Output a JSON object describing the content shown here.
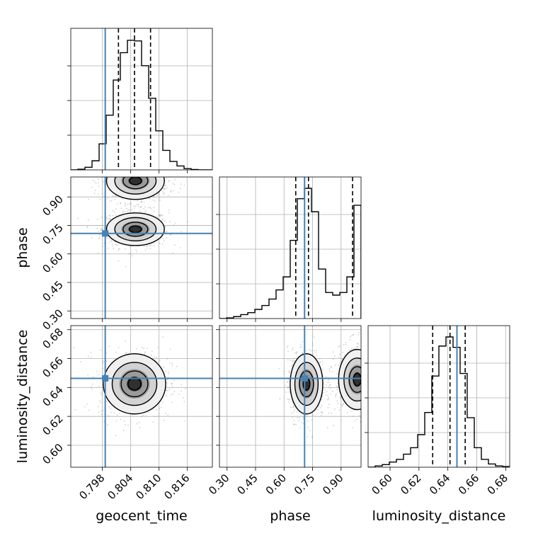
{
  "chart_data": {
    "type": "corner",
    "parameters": [
      "geocent_time",
      "phase",
      "luminosity_distance"
    ],
    "axis_labels": {
      "geocent_time": "geocent_time",
      "phase": "phase",
      "luminosity_distance": "luminosity_distance"
    },
    "ranges": {
      "geocent_time": [
        0.7913,
        0.8213
      ],
      "phase": [
        0.26,
        1.005
      ],
      "luminosity_distance": [
        0.5848,
        0.6828
      ]
    },
    "ticks": {
      "geocent_time": [
        0.798,
        0.804,
        0.81,
        0.816
      ],
      "phase": [
        0.3,
        0.45,
        0.6,
        0.75,
        0.9
      ],
      "luminosity_distance": [
        0.6,
        0.62,
        0.64,
        0.66,
        0.68
      ]
    },
    "tick_labels": {
      "geocent_time": [
        "0.798",
        "0.804",
        "0.810",
        "0.816"
      ],
      "phase": [
        "0.30",
        "0.45",
        "0.60",
        "0.75",
        "0.90"
      ],
      "luminosity_distance": [
        "0.60",
        "0.62",
        "0.64",
        "0.66",
        "0.68"
      ]
    },
    "truths": {
      "geocent_time": 0.7986,
      "phase": 0.708,
      "luminosity_distance": 0.6463
    },
    "quantiles": {
      "geocent_time": [
        0.8014,
        0.8048,
        0.8082
      ],
      "phase": [
        0.6615,
        0.7285,
        0.9605
      ],
      "luminosity_distance": [
        0.6295,
        0.6415,
        0.652
      ]
    },
    "histograms": {
      "geocent_time": {
        "bins": [
          0.7913,
          0.7928,
          0.7943,
          0.7958,
          0.7973,
          0.7988,
          0.8003,
          0.8018,
          0.8033,
          0.8048,
          0.8063,
          0.8078,
          0.8093,
          0.8108,
          0.8123,
          0.8138,
          0.8153,
          0.8168,
          0.8183,
          0.8198,
          0.8213
        ],
        "counts": [
          0.0,
          0.005,
          0.02,
          0.07,
          0.2,
          0.42,
          0.69,
          0.9,
          0.995,
          0.99,
          0.8,
          0.55,
          0.3,
          0.15,
          0.065,
          0.03,
          0.01,
          0.003,
          0.0,
          0.0
        ]
      },
      "phase": {
        "bins": [
          0.26,
          0.2973,
          0.3345,
          0.3718,
          0.409,
          0.4463,
          0.4835,
          0.5208,
          0.558,
          0.5953,
          0.6325,
          0.6698,
          0.707,
          0.7443,
          0.7815,
          0.8188,
          0.856,
          0.8933,
          0.9305,
          0.9678,
          1.005
        ],
        "counts": [
          0.0,
          0.005,
          0.015,
          0.03,
          0.045,
          0.07,
          0.1,
          0.15,
          0.22,
          0.32,
          0.6,
          0.92,
          1.0,
          0.82,
          0.38,
          0.2,
          0.18,
          0.2,
          0.32,
          0.87
        ]
      },
      "luminosity_distance": {
        "bins": [
          0.5848,
          0.5897,
          0.5946,
          0.5995,
          0.6044,
          0.6093,
          0.6142,
          0.6191,
          0.624,
          0.6289,
          0.6338,
          0.6387,
          0.6436,
          0.6485,
          0.6534,
          0.6583,
          0.6632,
          0.6681,
          0.673,
          0.6779,
          0.6828
        ],
        "counts": [
          0.0,
          0.01,
          0.02,
          0.04,
          0.06,
          0.1,
          0.15,
          0.25,
          0.42,
          0.7,
          0.93,
          1.0,
          0.92,
          0.72,
          0.38,
          0.15,
          0.06,
          0.025,
          0.01,
          0.005
        ]
      }
    },
    "density_modes": [
      {
        "x": "geocent_time",
        "y": "phase",
        "center": [
          0.805,
          0.73
        ],
        "spread": [
          0.0025,
          0.035
        ]
      },
      {
        "x": "geocent_time",
        "y": "phase",
        "center": [
          0.805,
          0.985
        ],
        "spread": [
          0.0025,
          0.04
        ]
      },
      {
        "x": "geocent_time",
        "y": "luminosity_distance",
        "center": [
          0.8048,
          0.6425
        ],
        "spread": [
          0.0027,
          0.0085
        ]
      },
      {
        "x": "phase",
        "y": "luminosity_distance",
        "center": [
          0.718,
          0.6425
        ],
        "spread": [
          0.035,
          0.0085
        ]
      },
      {
        "x": "phase",
        "y": "luminosity_distance",
        "center": [
          0.985,
          0.6455
        ],
        "spread": [
          0.04,
          0.0085
        ]
      }
    ],
    "colors": {
      "truth": "#4682b4",
      "histogram": "#000000",
      "quantile": "#000000",
      "grid": "#b0b0b0"
    }
  }
}
